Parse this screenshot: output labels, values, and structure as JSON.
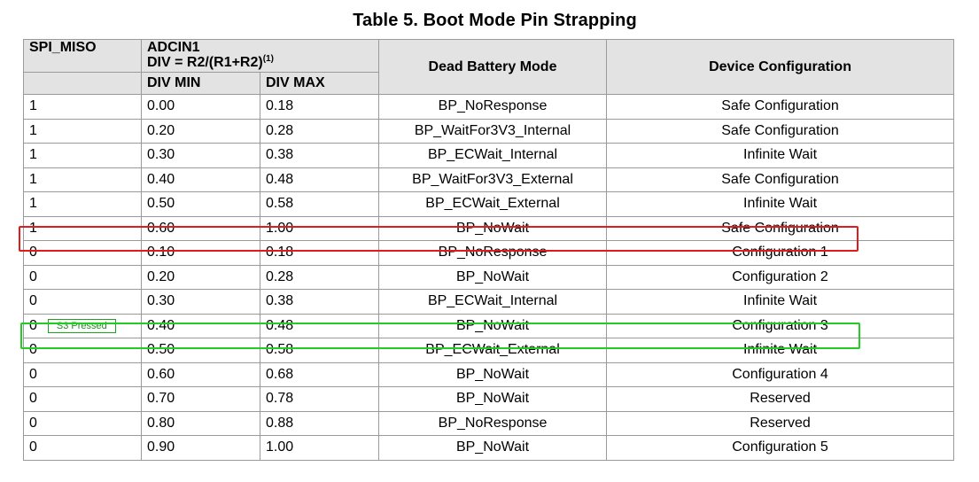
{
  "table": {
    "title": "Table 5. Boot Mode Pin Strapping",
    "header": {
      "spi_miso": "SPI_MISO",
      "adcin1_line1": "ADCIN1",
      "adcin1_line2": "DIV = R2/(R1+R2)",
      "adcin1_footnote": "(1)",
      "div_min": "DIV MIN",
      "div_max": "DIV MAX",
      "dead_battery_mode": "Dead Battery Mode",
      "device_configuration": "Device Configuration"
    },
    "rows": [
      {
        "spi_miso": "1",
        "div_min": "0.00",
        "div_max": "0.18",
        "mode": "BP_NoResponse",
        "config": "Safe Configuration"
      },
      {
        "spi_miso": "1",
        "div_min": "0.20",
        "div_max": "0.28",
        "mode": "BP_WaitFor3V3_Internal",
        "config": "Safe Configuration"
      },
      {
        "spi_miso": "1",
        "div_min": "0.30",
        "div_max": "0.38",
        "mode": "BP_ECWait_Internal",
        "config": "Infinite Wait"
      },
      {
        "spi_miso": "1",
        "div_min": "0.40",
        "div_max": "0.48",
        "mode": "BP_WaitFor3V3_External",
        "config": "Safe Configuration"
      },
      {
        "spi_miso": "1",
        "div_min": "0.50",
        "div_max": "0.58",
        "mode": "BP_ECWait_External",
        "config": "Infinite Wait"
      },
      {
        "spi_miso": "1",
        "div_min": "0.60",
        "div_max": "1.00",
        "mode": "BP_NoWait",
        "config": "Safe Configuration"
      },
      {
        "spi_miso": "0",
        "div_min": "0.10",
        "div_max": "0.18",
        "mode": "BP_NoResponse",
        "config": "Configuration 1"
      },
      {
        "spi_miso": "0",
        "div_min": "0.20",
        "div_max": "0.28",
        "mode": "BP_NoWait",
        "config": "Configuration 2"
      },
      {
        "spi_miso": "0",
        "div_min": "0.30",
        "div_max": "0.38",
        "mode": "BP_ECWait_Internal",
        "config": "Infinite Wait"
      },
      {
        "spi_miso": "0",
        "div_min": "0.40",
        "div_max": "0.48",
        "mode": "BP_NoWait",
        "config": "Configuration 3"
      },
      {
        "spi_miso": "0",
        "div_min": "0.50",
        "div_max": "0.58",
        "mode": "BP_ECWait_External",
        "config": "Infinite Wait"
      },
      {
        "spi_miso": "0",
        "div_min": "0.60",
        "div_max": "0.68",
        "mode": "BP_NoWait",
        "config": "Configuration 4"
      },
      {
        "spi_miso": "0",
        "div_min": "0.70",
        "div_max": "0.78",
        "mode": "BP_NoWait",
        "config": "Reserved"
      },
      {
        "spi_miso": "0",
        "div_min": "0.80",
        "div_max": "0.88",
        "mode": "BP_NoResponse",
        "config": "Reserved"
      },
      {
        "spi_miso": "0",
        "div_min": "0.90",
        "div_max": "1.00",
        "mode": "BP_NoWait",
        "config": "Configuration 5"
      }
    ]
  },
  "annotations": {
    "s3_badge": "S3 Pressed",
    "red_color": "#e01b1b",
    "green_color": "#22cc22"
  }
}
